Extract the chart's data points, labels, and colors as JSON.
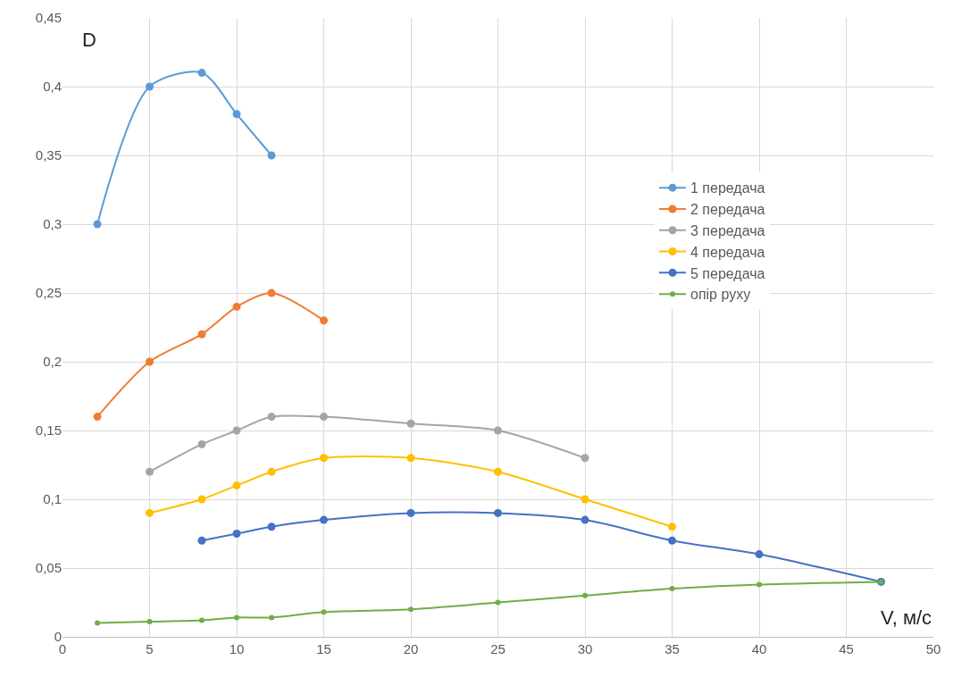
{
  "chart_data": {
    "type": "line",
    "xlabel": "V, м/с",
    "ylabel": "D",
    "xlim": [
      0,
      50
    ],
    "xticks": [
      0,
      5,
      10,
      15,
      20,
      25,
      30,
      35,
      40,
      45,
      50
    ],
    "ylim": [
      0,
      0.45
    ],
    "yticks": [
      {
        "value": 0,
        "label": "0"
      },
      {
        "value": 0.05,
        "label": "0,05"
      },
      {
        "value": 0.1,
        "label": "0,1"
      },
      {
        "value": 0.15,
        "label": "0,15"
      },
      {
        "value": 0.2,
        "label": "0,2"
      },
      {
        "value": 0.25,
        "label": "0,25"
      },
      {
        "value": 0.3,
        "label": "0,3"
      },
      {
        "value": 0.35,
        "label": "0,35"
      },
      {
        "value": 0.4,
        "label": "0,4"
      },
      {
        "value": 0.45,
        "label": "0,45"
      }
    ],
    "grid": true,
    "legend": "right",
    "marker": "circle",
    "line_style": "solid",
    "series": [
      {
        "name": "1 передача",
        "color": "#5b9bd5",
        "x": [
          2,
          5,
          8,
          10,
          12
        ],
        "values": [
          0.3,
          0.4,
          0.41,
          0.38,
          0.35
        ]
      },
      {
        "name": "2 передача",
        "color": "#ed7d31",
        "x": [
          2,
          5,
          8,
          10,
          12,
          15
        ],
        "values": [
          0.16,
          0.2,
          0.22,
          0.24,
          0.25,
          0.23
        ]
      },
      {
        "name": "3 передача",
        "color": "#a5a5a5",
        "x": [
          5,
          8,
          10,
          12,
          15,
          20,
          25,
          30
        ],
        "values": [
          0.12,
          0.14,
          0.15,
          0.16,
          0.16,
          0.155,
          0.15,
          0.13
        ]
      },
      {
        "name": "4 передача",
        "color": "#ffc000",
        "x": [
          5,
          8,
          10,
          12,
          15,
          20,
          25,
          30,
          35
        ],
        "values": [
          0.09,
          0.1,
          0.11,
          0.12,
          0.13,
          0.13,
          0.12,
          0.1,
          0.08
        ]
      },
      {
        "name": "5 передача",
        "color": "#4472c4",
        "x": [
          8,
          10,
          12,
          15,
          20,
          25,
          30,
          35,
          40,
          47
        ],
        "values": [
          0.07,
          0.075,
          0.08,
          0.085,
          0.09,
          0.09,
          0.085,
          0.07,
          0.06,
          0.04
        ]
      },
      {
        "name": "опір руху",
        "color": "#70ad47",
        "x": [
          2,
          5,
          8,
          10,
          12,
          15,
          20,
          25,
          30,
          35,
          40,
          47
        ],
        "values": [
          0.01,
          0.011,
          0.012,
          0.014,
          0.014,
          0.018,
          0.02,
          0.025,
          0.03,
          0.035,
          0.038,
          0.04
        ]
      }
    ]
  }
}
